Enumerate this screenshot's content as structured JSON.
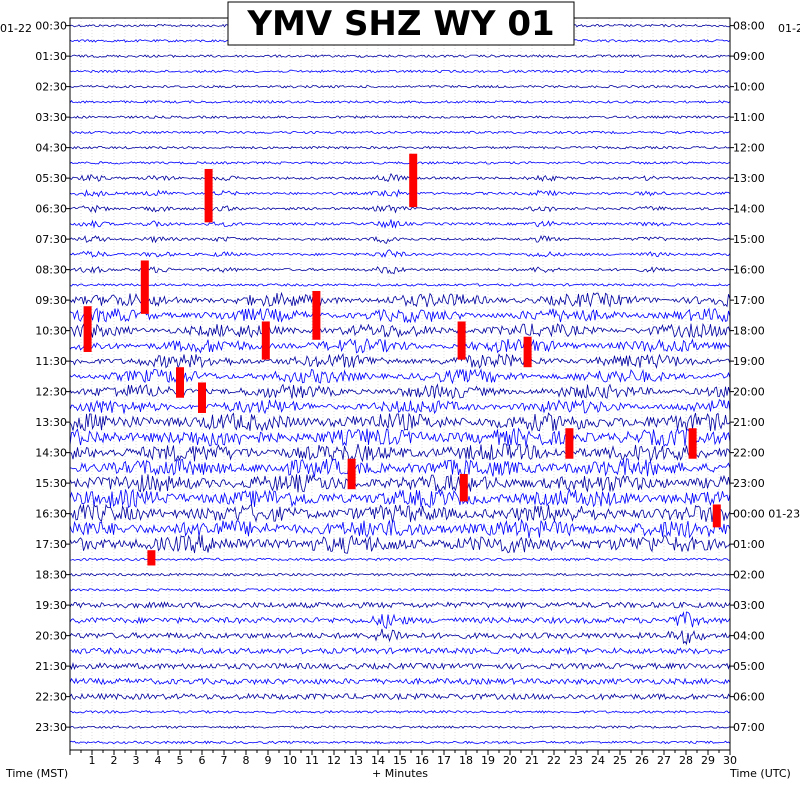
{
  "chart_data": {
    "type": "line",
    "title": "YMV SHZ WY 01",
    "left_date_label": "01-22",
    "right_date_label": "01-2",
    "xlabel": "+ Minutes",
    "left_axis_label": "Time (MST)",
    "right_axis_label": "Time (UTC)",
    "xlim": [
      0,
      30
    ],
    "x_ticks": [
      "1",
      "2",
      "3",
      "4",
      "5",
      "6",
      "7",
      "8",
      "9",
      "10",
      "11",
      "12",
      "13",
      "14",
      "15",
      "16",
      "17",
      "18",
      "19",
      "20",
      "21",
      "22",
      "23",
      "24",
      "25",
      "26",
      "27",
      "28",
      "29",
      "30"
    ],
    "left_ticks": [
      "00:30",
      "01:30",
      "02:30",
      "03:30",
      "04:30",
      "05:30",
      "06:30",
      "07:30",
      "08:30",
      "09:30",
      "10:30",
      "11:30",
      "12:30",
      "13:30",
      "14:30",
      "15:30",
      "16:30",
      "17:30",
      "18:30",
      "19:30",
      "20:30",
      "21:30",
      "22:30",
      "23:30"
    ],
    "right_ticks": [
      "08:00",
      "09:00",
      "10:00",
      "11:00",
      "12:00",
      "13:00",
      "14:00",
      "15:00",
      "16:00",
      "17:00",
      "18:00",
      "19:00",
      "20:00",
      "21:00",
      "22:00",
      "23:00",
      "00:00 01-23",
      "01:00",
      "02:00",
      "03:00",
      "04:00",
      "05:00",
      "06:00",
      "07:00"
    ],
    "trace_colors": [
      "#0000a0",
      "#0000ff"
    ],
    "clip_color": "#ff0000",
    "grid": true,
    "rows_per_hour": 2
  }
}
